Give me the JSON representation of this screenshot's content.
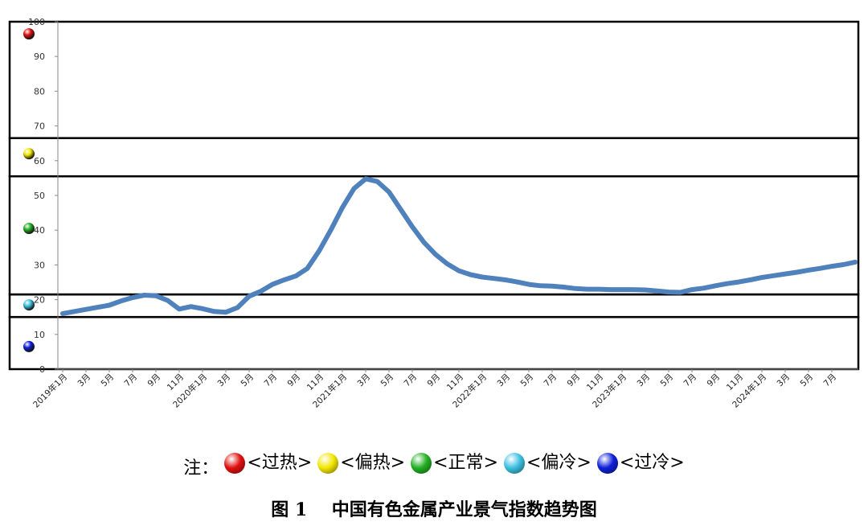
{
  "chart_data": {
    "type": "line",
    "y_ticks": [
      "0",
      "10",
      "20",
      "30",
      "40",
      "50",
      "60",
      "70",
      "80",
      "90",
      "100"
    ],
    "ylim": [
      0,
      100
    ],
    "zone_bounds": [
      15,
      21.5,
      55.5,
      66.5
    ],
    "x_tick_labels": [
      "2019年1月",
      "3月",
      "5月",
      "7月",
      "9月",
      "11月",
      "2020年1月",
      "3月",
      "5月",
      "7月",
      "9月",
      "11月",
      "2021年1月",
      "3月",
      "5月",
      "7月",
      "9月",
      "11月",
      "2022年1月",
      "3月",
      "5月",
      "7月",
      "9月",
      "11月",
      "2023年1月",
      "3月",
      "5月",
      "7月",
      "9月",
      "11月",
      "2024年1月",
      "3月",
      "5月",
      "7月"
    ],
    "series": [
      {
        "color": "#4f81bd",
        "values": [
          16,
          16.6,
          17.2,
          17.8,
          18.4,
          19.6,
          20.6,
          21.3,
          21.1,
          19.8,
          17.3,
          18.0,
          17.4,
          16.6,
          16.4,
          17.7,
          21.0,
          22.4,
          24.4,
          25.7,
          26.8,
          29.0,
          34.0,
          40.0,
          46.5,
          52.0,
          54.8,
          54.0,
          51.0,
          46.0,
          41.0,
          36.5,
          33.0,
          30.3,
          28.3,
          27.2,
          26.5,
          26.1,
          25.7,
          25.1,
          24.4,
          24.0,
          23.9,
          23.6,
          23.2,
          23.0,
          23.0,
          22.9,
          22.9,
          22.9,
          22.8,
          22.5,
          22.2,
          22.1,
          22.9,
          23.3,
          24.0,
          24.6,
          25.1,
          25.7,
          26.4,
          26.9,
          27.4,
          27.9,
          28.5,
          29.0,
          29.6,
          30.1,
          30.8
        ]
      }
    ],
    "zone_markers": [
      {
        "zone": "过热",
        "color": "#e01010",
        "value": 96.5
      },
      {
        "zone": "偏热",
        "color": "#f2e600",
        "value": 62
      },
      {
        "zone": "正常",
        "color": "#22b022",
        "value": 40.5
      },
      {
        "zone": "偏冷",
        "color": "#3cc0e0",
        "value": 18.5
      },
      {
        "zone": "过冷",
        "color": "#1020d8",
        "value": 6.5
      }
    ]
  },
  "legend": {
    "prefix": "注：",
    "items": [
      {
        "label": "<过热>",
        "color": "#e01010"
      },
      {
        "label": "<偏热>",
        "color": "#f2e600"
      },
      {
        "label": "<正常>",
        "color": "#22b022"
      },
      {
        "label": "<偏冷>",
        "color": "#3cc0e0"
      },
      {
        "label": "<过冷>",
        "color": "#1020d8"
      }
    ]
  },
  "caption": {
    "figure": "图 1",
    "title": "中国有色金属产业景气指数趋势图"
  }
}
